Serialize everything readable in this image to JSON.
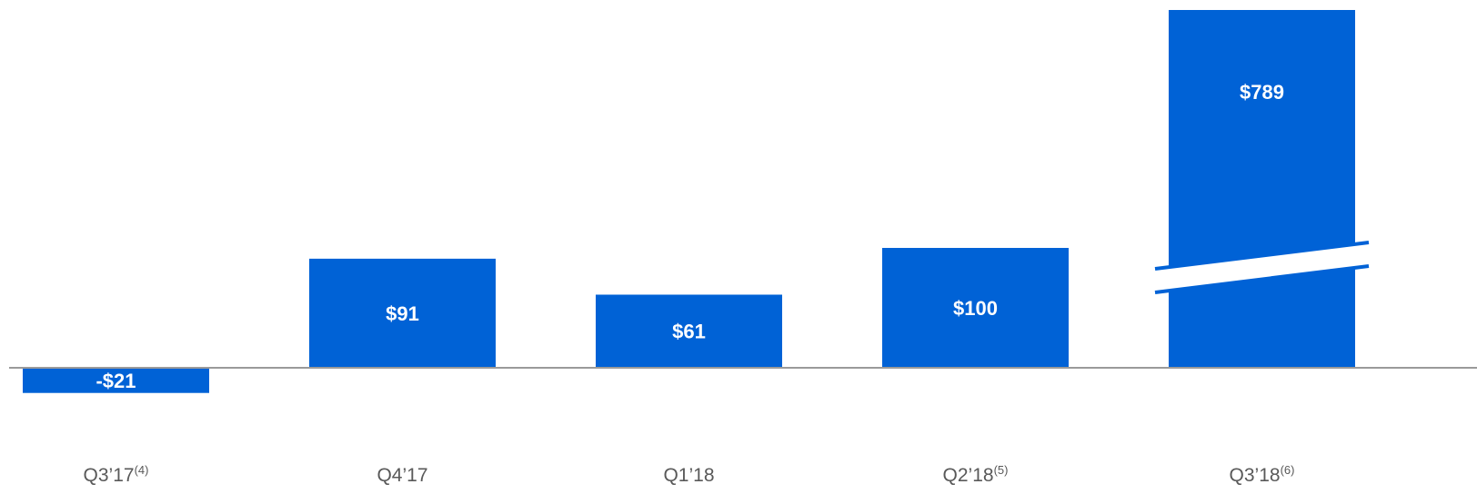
{
  "colors": {
    "bar": "#0062d6",
    "axis": "#9a9a9a",
    "label_text": "#ffffff",
    "category_text": "#595959",
    "background": "#ffffff"
  },
  "chart_data": {
    "type": "bar",
    "categories": [
      "Q3’17",
      "Q4’17",
      "Q1’18",
      "Q2’18",
      "Q3’18"
    ],
    "category_footnotes": [
      "(4)",
      "",
      "",
      "(5)",
      "(6)"
    ],
    "values": [
      -21,
      91,
      61,
      100,
      789
    ],
    "data_labels": [
      "-$21",
      "$91",
      "$61",
      "$100",
      "$789"
    ],
    "axis_break": "Q3’18",
    "title": "",
    "xlabel": "",
    "ylabel": "",
    "grid": false,
    "legend": false
  }
}
